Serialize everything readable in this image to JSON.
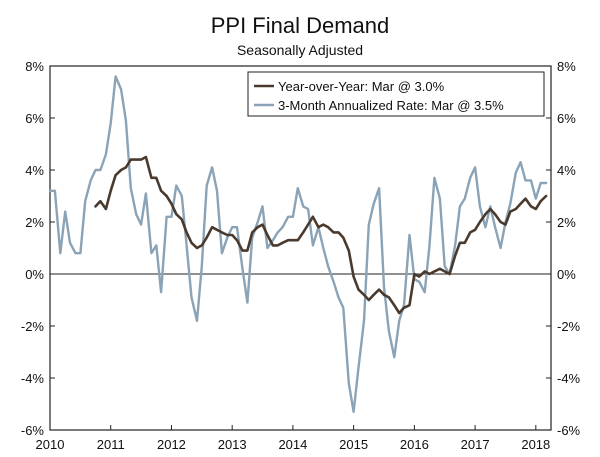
{
  "chart_data": {
    "type": "line",
    "title": "PPI Final Demand",
    "subtitle": "Seasonally Adjusted",
    "ylim": [
      -6,
      8
    ],
    "yticks": [
      8,
      6,
      4,
      2,
      0,
      -2,
      -4,
      -6
    ],
    "ytick_labels": [
      "8%",
      "6%",
      "4%",
      "2%",
      "0%",
      "-2%",
      "-4%",
      "-6%"
    ],
    "xlim": [
      2010.0,
      2018.25
    ],
    "xticks": [
      2010,
      2011,
      2012,
      2013,
      2014,
      2015,
      2016,
      2017,
      2018
    ],
    "xtick_labels": [
      "2010",
      "2011",
      "2012",
      "2013",
      "2014",
      "2015",
      "2016",
      "2017",
      "2018"
    ],
    "legend_position": "top-right",
    "colors": {
      "yoy": "#4a3a2e",
      "three_month": "#8aa3b7",
      "axis": "#222222",
      "zero_line": "#222222"
    },
    "series": [
      {
        "key": "yoy",
        "name": "Year-over-Year: Mar @ 3.0%",
        "x": [
          2010.75,
          2010.83,
          2010.92,
          2011.0,
          2011.08,
          2011.17,
          2011.25,
          2011.33,
          2011.42,
          2011.5,
          2011.58,
          2011.67,
          2011.75,
          2011.83,
          2011.92,
          2012.0,
          2012.08,
          2012.17,
          2012.25,
          2012.33,
          2012.42,
          2012.5,
          2012.58,
          2012.67,
          2012.75,
          2012.83,
          2012.92,
          2013.0,
          2013.08,
          2013.17,
          2013.25,
          2013.33,
          2013.42,
          2013.5,
          2013.58,
          2013.67,
          2013.75,
          2013.83,
          2013.92,
          2014.0,
          2014.08,
          2014.17,
          2014.25,
          2014.33,
          2014.42,
          2014.5,
          2014.58,
          2014.67,
          2014.75,
          2014.83,
          2014.92,
          2015.0,
          2015.08,
          2015.17,
          2015.25,
          2015.33,
          2015.42,
          2015.5,
          2015.58,
          2015.67,
          2015.75,
          2015.83,
          2015.92,
          2016.0,
          2016.08,
          2016.17,
          2016.25,
          2016.33,
          2016.42,
          2016.5,
          2016.58,
          2016.67,
          2016.75,
          2016.83,
          2016.92,
          2017.0,
          2017.08,
          2017.17,
          2017.25,
          2017.33,
          2017.42,
          2017.5,
          2017.58,
          2017.67,
          2017.75,
          2017.83,
          2017.92,
          2018.0,
          2018.08,
          2018.17
        ],
        "values": [
          2.6,
          2.8,
          2.5,
          3.2,
          3.8,
          4.0,
          4.1,
          4.4,
          4.4,
          4.4,
          4.5,
          3.7,
          3.7,
          3.2,
          3.0,
          2.7,
          2.3,
          2.1,
          1.6,
          1.2,
          1.0,
          1.1,
          1.4,
          1.8,
          1.7,
          1.6,
          1.5,
          1.5,
          1.3,
          0.9,
          0.9,
          1.6,
          1.8,
          1.9,
          1.5,
          1.1,
          1.1,
          1.2,
          1.3,
          1.3,
          1.3,
          1.6,
          1.9,
          2.2,
          1.8,
          1.9,
          1.8,
          1.6,
          1.6,
          1.4,
          0.9,
          -0.1,
          -0.6,
          -0.8,
          -1.0,
          -0.8,
          -0.6,
          -0.8,
          -0.9,
          -1.2,
          -1.5,
          -1.3,
          -1.2,
          0.0,
          -0.1,
          0.1,
          0.0,
          0.1,
          0.2,
          0.1,
          0.0,
          0.7,
          1.2,
          1.2,
          1.6,
          1.7,
          2.0,
          2.3,
          2.5,
          2.3,
          2.0,
          1.9,
          2.4,
          2.5,
          2.7,
          2.9,
          2.6,
          2.5,
          2.8,
          3.0
        ]
      },
      {
        "key": "three_month",
        "name": "3-Month Annualized Rate: Mar @ 3.5%",
        "x": [
          2010.0,
          2010.08,
          2010.17,
          2010.25,
          2010.33,
          2010.42,
          2010.5,
          2010.58,
          2010.67,
          2010.75,
          2010.83,
          2010.92,
          2011.0,
          2011.08,
          2011.17,
          2011.25,
          2011.33,
          2011.42,
          2011.5,
          2011.58,
          2011.67,
          2011.75,
          2011.83,
          2011.92,
          2012.0,
          2012.08,
          2012.17,
          2012.25,
          2012.33,
          2012.42,
          2012.5,
          2012.58,
          2012.67,
          2012.75,
          2012.83,
          2012.92,
          2013.0,
          2013.08,
          2013.17,
          2013.25,
          2013.33,
          2013.42,
          2013.5,
          2013.58,
          2013.67,
          2013.75,
          2013.83,
          2013.92,
          2014.0,
          2014.08,
          2014.17,
          2014.25,
          2014.33,
          2014.42,
          2014.5,
          2014.58,
          2014.67,
          2014.75,
          2014.83,
          2014.92,
          2015.0,
          2015.08,
          2015.17,
          2015.25,
          2015.33,
          2015.42,
          2015.5,
          2015.58,
          2015.67,
          2015.75,
          2015.83,
          2015.92,
          2016.0,
          2016.08,
          2016.17,
          2016.25,
          2016.33,
          2016.42,
          2016.5,
          2016.58,
          2016.67,
          2016.75,
          2016.83,
          2016.92,
          2017.0,
          2017.08,
          2017.17,
          2017.25,
          2017.33,
          2017.42,
          2017.5,
          2017.58,
          2017.67,
          2017.75,
          2017.83,
          2017.92,
          2018.0,
          2018.08,
          2018.17
        ],
        "values": [
          3.2,
          3.2,
          0.8,
          2.4,
          1.2,
          0.8,
          0.8,
          2.8,
          3.6,
          4.0,
          4.0,
          4.6,
          5.8,
          7.6,
          7.1,
          5.9,
          3.3,
          2.3,
          1.9,
          3.1,
          0.8,
          1.1,
          -0.7,
          2.2,
          2.2,
          3.4,
          3.0,
          1.1,
          -0.9,
          -1.8,
          0.3,
          3.4,
          4.1,
          3.2,
          0.8,
          1.4,
          1.8,
          1.8,
          0.2,
          -1.1,
          1.4,
          2.0,
          2.6,
          1.0,
          1.3,
          1.6,
          1.8,
          2.2,
          2.2,
          3.3,
          2.6,
          2.5,
          1.1,
          1.8,
          1.0,
          0.3,
          -0.3,
          -0.9,
          -1.3,
          -4.2,
          -5.3,
          -3.6,
          -1.8,
          1.9,
          2.7,
          3.3,
          -0.5,
          -2.2,
          -3.2,
          -1.8,
          -1.2,
          1.5,
          -0.2,
          -0.3,
          -0.7,
          1.1,
          3.7,
          2.9,
          0.3,
          0.0,
          1.1,
          2.6,
          2.9,
          3.7,
          4.1,
          2.6,
          1.8,
          2.6,
          1.8,
          1.0,
          2.0,
          2.7,
          3.9,
          4.3,
          3.6,
          3.6,
          2.9,
          3.5,
          3.5
        ]
      }
    ]
  }
}
